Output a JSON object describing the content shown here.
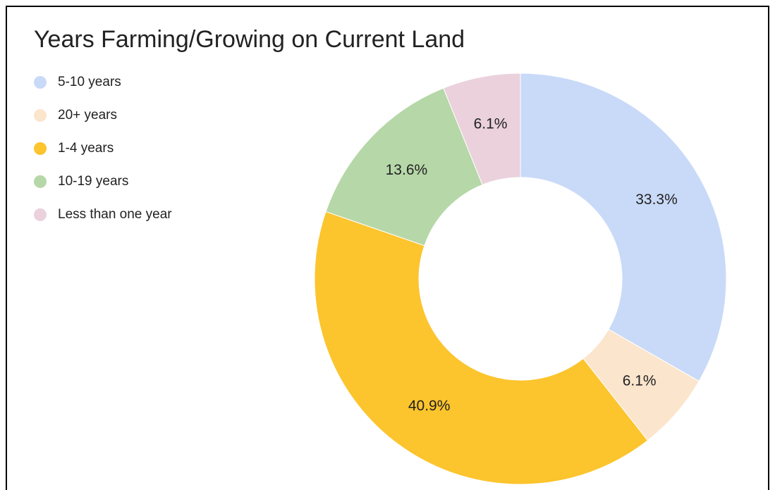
{
  "chart_data": {
    "type": "donut",
    "title": "Years Farming/Growing on Current Land",
    "categories": [
      "5-10 years",
      "20+ years",
      "1-4 years",
      "10-19 years",
      "Less than one year"
    ],
    "values": [
      33.3,
      6.1,
      40.9,
      13.6,
      6.1
    ],
    "value_labels": [
      "33.3%",
      "6.1%",
      "40.9%",
      "13.6%",
      "6.1%"
    ],
    "colors": [
      "#c9daf8",
      "#fce5cd",
      "#fcc42d",
      "#b6d7a8",
      "#ead1dc"
    ],
    "legend": "top-left"
  }
}
